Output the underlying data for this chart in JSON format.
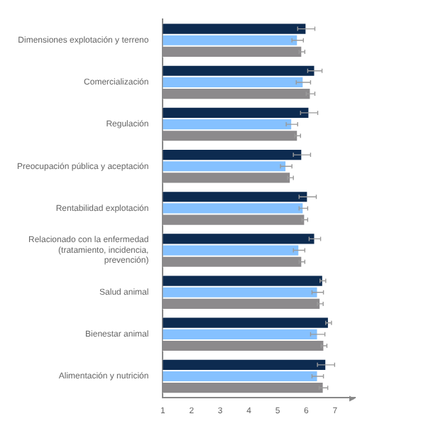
{
  "chart_data": {
    "type": "bar",
    "orientation": "horizontal",
    "categories": [
      "Dimensiones explotación y terreno",
      "Comercialización",
      "Regulación",
      "Preocupación pública y aceptación",
      "Rentabilidad explotación",
      "Relacionado con la enfermedad (tratamiento, incidencia, prevención)",
      "Salud animal",
      "Bienestar animal",
      "Alimentación y nutrición"
    ],
    "series": [
      {
        "color": "#0d2b50",
        "values": [
          6.0,
          6.3,
          6.1,
          5.85,
          6.05,
          6.3,
          6.58,
          6.78,
          6.69
        ],
        "errors": [
          0.3,
          0.25,
          0.3,
          0.3,
          0.3,
          0.2,
          0.1,
          0.1,
          0.3
        ]
      },
      {
        "color": "#85c1ff",
        "values": [
          5.7,
          5.9,
          5.5,
          5.3,
          5.9,
          5.75,
          6.4,
          6.4,
          6.4
        ],
        "errors": [
          0.2,
          0.25,
          0.2,
          0.2,
          0.15,
          0.2,
          0.2,
          0.25,
          0.2
        ]
      },
      {
        "color": "#8c8a8c",
        "values": [
          5.85,
          6.15,
          5.7,
          5.45,
          5.95,
          5.85,
          6.49,
          6.62,
          6.6
        ],
        "errors": [
          0.1,
          0.15,
          0.1,
          0.1,
          0.1,
          0.1,
          0.1,
          0.1,
          0.15
        ]
      }
    ],
    "xlim": [
      1,
      7.7
    ],
    "xticks": [
      1,
      2,
      3,
      4,
      5,
      6,
      7
    ],
    "grid": false,
    "legend": false
  }
}
